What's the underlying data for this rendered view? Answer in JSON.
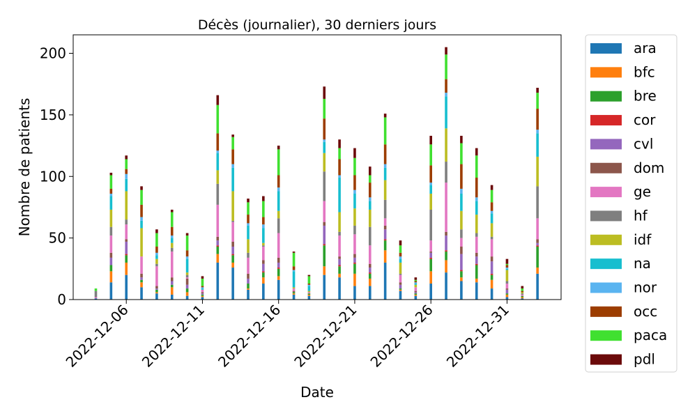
{
  "chart_data": {
    "type": "bar",
    "stacked": true,
    "title": "Décès (journalier), 30 derniers jours",
    "xlabel": "Date",
    "ylabel": "Nombre de patients",
    "ylim": [
      0,
      215
    ],
    "yticks": [
      0,
      50,
      100,
      150,
      200
    ],
    "xtick_labels": [
      "2022-12-06",
      "2022-12-11",
      "2022-12-16",
      "2022-12-21",
      "2022-12-26",
      "2022-12-31"
    ],
    "categories": [
      "2022-12-04",
      "2022-12-05",
      "2022-12-06",
      "2022-12-07",
      "2022-12-08",
      "2022-12-09",
      "2022-12-10",
      "2022-12-11",
      "2022-12-12",
      "2022-12-13",
      "2022-12-14",
      "2022-12-15",
      "2022-12-16",
      "2022-12-17",
      "2022-12-18",
      "2022-12-19",
      "2022-12-20",
      "2022-12-21",
      "2022-12-22",
      "2022-12-23",
      "2022-12-24",
      "2022-12-25",
      "2022-12-26",
      "2022-12-27",
      "2022-12-28",
      "2022-12-29",
      "2022-12-30",
      "2022-12-31",
      "2023-01-01",
      "2023-01-02"
    ],
    "legend_position": "outside-right",
    "series": [
      {
        "name": "ara",
        "color": "#1f77b4",
        "values": [
          1,
          14,
          20,
          10,
          5,
          4,
          3,
          2,
          30,
          26,
          8,
          13,
          16,
          4,
          3,
          20,
          18,
          11,
          11,
          30,
          7,
          3,
          13,
          22,
          15,
          14,
          9,
          2,
          1,
          21
        ]
      },
      {
        "name": "bfc",
        "color": "#ff7f0e",
        "values": [
          0,
          9,
          10,
          4,
          1,
          6,
          3,
          1,
          7,
          4,
          1,
          5,
          3,
          1,
          1,
          7,
          3,
          10,
          6,
          10,
          1,
          1,
          10,
          10,
          3,
          3,
          7,
          2,
          1,
          5
        ]
      },
      {
        "name": "bre",
        "color": "#2ca02c",
        "values": [
          0,
          5,
          6,
          2,
          2,
          2,
          3,
          1,
          6,
          6,
          4,
          4,
          6,
          1,
          1,
          17,
          6,
          8,
          4,
          8,
          1,
          1,
          10,
          7,
          5,
          11,
          4,
          1,
          1,
          17
        ]
      },
      {
        "name": "cor",
        "color": "#d62728",
        "values": [
          0,
          0,
          1,
          0,
          0,
          0,
          0,
          0,
          1,
          1,
          0,
          1,
          1,
          0,
          0,
          1,
          1,
          1,
          1,
          1,
          0,
          0,
          1,
          1,
          1,
          1,
          1,
          0,
          0,
          1
        ]
      },
      {
        "name": "cvl",
        "color": "#9467bd",
        "values": [
          0,
          6,
          10,
          2,
          1,
          3,
          3,
          1,
          4,
          6,
          4,
          6,
          4,
          0,
          0,
          15,
          5,
          4,
          4,
          8,
          3,
          1,
          4,
          12,
          13,
          6,
          10,
          3,
          0,
          2
        ]
      },
      {
        "name": "dom",
        "color": "#8c564b",
        "values": [
          0,
          4,
          2,
          3,
          2,
          3,
          5,
          1,
          3,
          4,
          4,
          3,
          4,
          1,
          0,
          3,
          2,
          3,
          3,
          3,
          2,
          1,
          1,
          3,
          6,
          3,
          4,
          1,
          0,
          3
        ]
      },
      {
        "name": "ge",
        "color": "#e377c2",
        "values": [
          1,
          14,
          12,
          14,
          16,
          21,
          1,
          2,
          26,
          16,
          13,
          11,
          20,
          2,
          1,
          17,
          17,
          16,
          15,
          6,
          6,
          3,
          9,
          40,
          7,
          13,
          14,
          4,
          1,
          17
        ]
      },
      {
        "name": "hf",
        "color": "#7f7f7f",
        "values": [
          5,
          7,
          4,
          0,
          2,
          3,
          2,
          0,
          17,
          1,
          4,
          1,
          12,
          0,
          0,
          24,
          3,
          7,
          15,
          15,
          1,
          0,
          25,
          17,
          7,
          3,
          2,
          2,
          1,
          26
        ]
      },
      {
        "name": "idf",
        "color": "#bcbd22",
        "values": [
          0,
          14,
          23,
          23,
          4,
          4,
          2,
          0,
          11,
          24,
          11,
          2,
          6,
          1,
          1,
          15,
          16,
          14,
          14,
          16,
          9,
          2,
          13,
          27,
          15,
          15,
          11,
          9,
          1,
          24
        ]
      },
      {
        "name": "na",
        "color": "#17becf",
        "values": [
          0,
          11,
          10,
          6,
          3,
          4,
          11,
          1,
          14,
          19,
          11,
          12,
          16,
          13,
          4,
          9,
          28,
          12,
          7,
          10,
          3,
          1,
          7,
          26,
          14,
          11,
          8,
          1,
          0,
          19
        ]
      },
      {
        "name": "nor",
        "color": "#5ab4f0",
        "values": [
          0,
          2,
          4,
          3,
          2,
          2,
          2,
          1,
          2,
          3,
          2,
          3,
          3,
          1,
          1,
          2,
          2,
          3,
          3,
          3,
          2,
          1,
          2,
          3,
          4,
          3,
          2,
          1,
          0,
          3
        ]
      },
      {
        "name": "occ",
        "color": "#9c3d00",
        "values": [
          0,
          4,
          4,
          10,
          5,
          7,
          5,
          1,
          14,
          12,
          7,
          6,
          10,
          3,
          1,
          17,
          13,
          12,
          12,
          16,
          3,
          1,
          14,
          11,
          20,
          16,
          7,
          2,
          1,
          17
        ]
      },
      {
        "name": "paca",
        "color": "#40e030",
        "values": [
          2,
          11,
          8,
          12,
          11,
          12,
          12,
          6,
          23,
          10,
          10,
          13,
          21,
          11,
          6,
          16,
          9,
          14,
          6,
          22,
          6,
          1,
          17,
          20,
          17,
          18,
          10,
          1,
          2,
          13
        ]
      },
      {
        "name": "pdl",
        "color": "#6b0a0a",
        "values": [
          0,
          2,
          3,
          3,
          3,
          2,
          2,
          2,
          8,
          2,
          3,
          4,
          3,
          1,
          1,
          10,
          7,
          8,
          7,
          3,
          4,
          2,
          7,
          6,
          6,
          6,
          4,
          4,
          2,
          4
        ]
      }
    ]
  }
}
